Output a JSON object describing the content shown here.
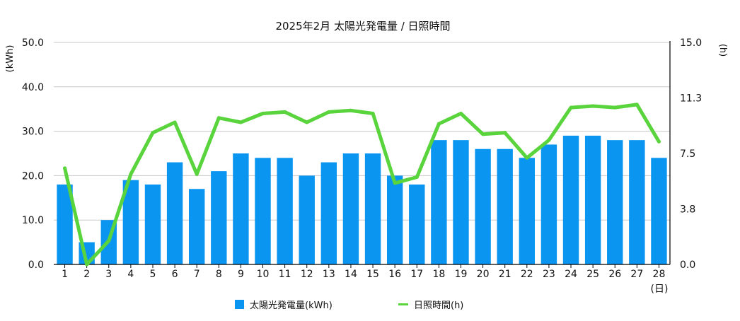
{
  "chart_data": {
    "type": "bar",
    "title": "2025年2月 太陽光発電量 / 日照時間",
    "categories": [
      "1",
      "2",
      "3",
      "4",
      "5",
      "6",
      "7",
      "8",
      "9",
      "10",
      "11",
      "12",
      "13",
      "14",
      "15",
      "16",
      "17",
      "18",
      "19",
      "20",
      "21",
      "22",
      "23",
      "24",
      "25",
      "26",
      "27",
      "28"
    ],
    "x_unit": "(日)",
    "series": [
      {
        "name": "太陽光発電量(kWh)",
        "type": "bar",
        "axis": "left",
        "color": "#0a96f0",
        "values": [
          18,
          5,
          10,
          19,
          18,
          23,
          17,
          21,
          25,
          24,
          24,
          20,
          23,
          25,
          25,
          20,
          18,
          28,
          28,
          26,
          26,
          24,
          27,
          29,
          29,
          28,
          28,
          24
        ]
      },
      {
        "name": "日照時間(h)",
        "type": "line",
        "axis": "right",
        "color": "#5ad43c",
        "values": [
          6.5,
          0.0,
          1.6,
          6.1,
          8.9,
          9.6,
          6.1,
          9.9,
          9.6,
          10.2,
          10.3,
          9.6,
          10.3,
          10.4,
          10.2,
          5.5,
          5.9,
          9.5,
          10.2,
          8.8,
          8.9,
          7.2,
          8.4,
          10.6,
          10.7,
          10.6,
          10.8,
          8.3
        ]
      }
    ],
    "y_left": {
      "unit": "(kWh)",
      "min": 0,
      "max": 50,
      "ticks": [
        0,
        10,
        20,
        30,
        40,
        50
      ],
      "tick_labels": [
        "0.0",
        "10.0",
        "20.0",
        "30.0",
        "40.0",
        "50.0"
      ]
    },
    "y_right": {
      "unit": "(h)",
      "min": 0,
      "max": 15,
      "ticks": [
        0,
        3.75,
        7.5,
        11.25,
        15
      ],
      "tick_labels": [
        "0.0",
        "3.8",
        "7.5",
        "11.3",
        "15.0"
      ]
    },
    "grid": true,
    "legend_position": "bottom"
  }
}
